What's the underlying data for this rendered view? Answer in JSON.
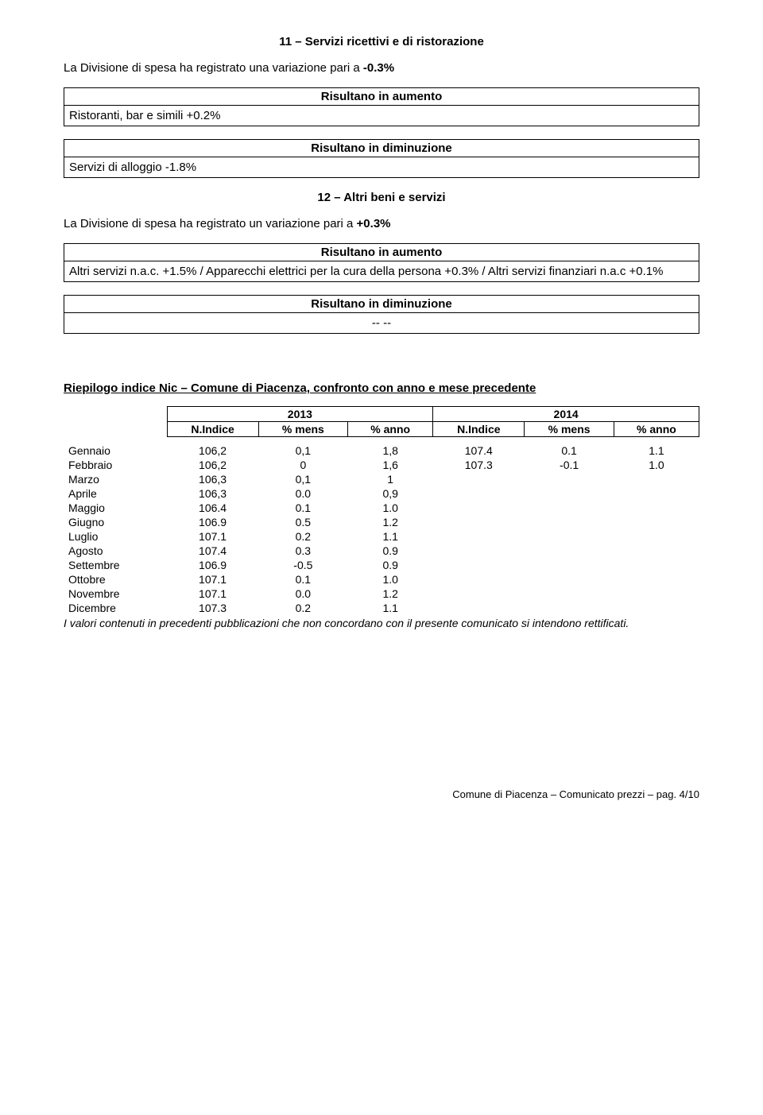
{
  "section11": {
    "title": "11 – Servizi ricettivi e di ristorazione",
    "intro_prefix": "La Divisione di spesa ha registrato una variazione pari a  ",
    "intro_value": "-0.3%",
    "aumento": {
      "header": "Risultano in aumento",
      "body": "Ristoranti, bar e simili +0.2%"
    },
    "diminuzione": {
      "header": "Risultano in diminuzione",
      "body": "Servizi di alloggio -1.8%"
    }
  },
  "section12": {
    "title": "12 – Altri beni e servizi",
    "intro_prefix": "La Divisione di spesa ha registrato un variazione pari a ",
    "intro_value": "+0.3%",
    "aumento": {
      "header": "Risultano in aumento",
      "body": "Altri servizi n.a.c. +1.5% / Apparecchi elettrici per la cura della  persona +0.3% / Altri servizi finanziari n.a.c +0.1%"
    },
    "diminuzione": {
      "header": "Risultano in diminuzione",
      "body": "-- --"
    }
  },
  "riepilogo": {
    "title": "Riepilogo indice Nic – Comune di Piacenza, confronto con anno e  mese precedente",
    "year_left": "2013",
    "year_right": "2014",
    "col_labels": {
      "indice": "N.Indice",
      "mens": "% mens",
      "anno": "% anno"
    },
    "rows": [
      {
        "label": "Gennaio",
        "l_idx": "106,2",
        "l_mens": "0,1",
        "l_anno": "1,8",
        "r_idx": "107.4",
        "r_mens": "0.1",
        "r_anno": "1.1"
      },
      {
        "label": "Febbraio",
        "l_idx": "106,2",
        "l_mens": "0",
        "l_anno": "1,6",
        "r_idx": "107.3",
        "r_mens": "-0.1",
        "r_anno": "1.0"
      },
      {
        "label": "Marzo",
        "l_idx": "106,3",
        "l_mens": "0,1",
        "l_anno": "1",
        "r_idx": "",
        "r_mens": "",
        "r_anno": ""
      },
      {
        "label": "Aprile",
        "l_idx": "106,3",
        "l_mens": "0.0",
        "l_anno": "0,9",
        "r_idx": "",
        "r_mens": "",
        "r_anno": ""
      },
      {
        "label": "Maggio",
        "l_idx": "106.4",
        "l_mens": "0.1",
        "l_anno": "1.0",
        "r_idx": "",
        "r_mens": "",
        "r_anno": ""
      },
      {
        "label": "Giugno",
        "l_idx": "106.9",
        "l_mens": "0.5",
        "l_anno": "1.2",
        "r_idx": "",
        "r_mens": "",
        "r_anno": ""
      },
      {
        "label": "Luglio",
        "l_idx": "107.1",
        "l_mens": "0.2",
        "l_anno": "1.1",
        "r_idx": "",
        "r_mens": "",
        "r_anno": ""
      },
      {
        "label": "Agosto",
        "l_idx": "107.4",
        "l_mens": "0.3",
        "l_anno": "0.9",
        "r_idx": "",
        "r_mens": "",
        "r_anno": ""
      },
      {
        "label": "Settembre",
        "l_idx": "106.9",
        "l_mens": "-0.5",
        "l_anno": "0.9",
        "r_idx": "",
        "r_mens": "",
        "r_anno": ""
      },
      {
        "label": "Ottobre",
        "l_idx": "107.1",
        "l_mens": "0.1",
        "l_anno": "1.0",
        "r_idx": "",
        "r_mens": "",
        "r_anno": ""
      },
      {
        "label": "Novembre",
        "l_idx": "107.1",
        "l_mens": "0.0",
        "l_anno": "1.2",
        "r_idx": "",
        "r_mens": "",
        "r_anno": ""
      },
      {
        "label": "Dicembre",
        "l_idx": "107.3",
        "l_mens": "0.2",
        "l_anno": "1.1",
        "r_idx": "",
        "r_mens": "",
        "r_anno": ""
      }
    ],
    "footnote": "I valori contenuti in precedenti pubblicazioni che non concordano con il presente comunicato si intendono rettificati."
  },
  "footer": "Comune di Piacenza – Comunicato prezzi – pag. 4/10"
}
